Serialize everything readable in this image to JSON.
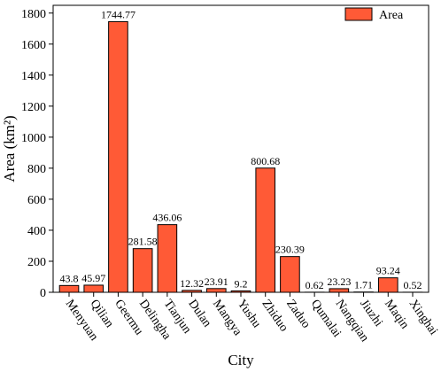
{
  "chart_data": {
    "type": "bar",
    "xlabel": "City",
    "ylabel": "Area (km²)",
    "legend": {
      "label": "Area",
      "placement": "top-right"
    },
    "ylim": [
      0,
      1850
    ],
    "yticks": [
      0,
      200,
      400,
      600,
      800,
      1000,
      1200,
      1400,
      1600,
      1800
    ],
    "categories": [
      "Menyuan",
      "Qilian",
      "Geermu",
      "Delingha",
      "Tianjun",
      "Dulan",
      "Mangya",
      "Yushu",
      "Zhiduo",
      "Zaduo",
      "Qumalai",
      "Nangqian",
      "Jiuzhi",
      "Maqin",
      "Xinghai"
    ],
    "series": [
      {
        "name": "Area",
        "color": "#ff5a36",
        "values": [
          43.8,
          45.97,
          1744.77,
          281.58,
          436.06,
          12.32,
          23.91,
          9.2,
          800.68,
          230.39,
          0.62,
          23.23,
          1.71,
          93.24,
          0.52
        ],
        "value_labels": [
          "43.8",
          "45.97",
          "1744.77",
          "281.58",
          "436.06",
          "12.32",
          "23.91",
          "9.2",
          "800.68",
          "230.39",
          "0.62",
          "23.23",
          "1.71",
          "93.24",
          "0.52"
        ]
      }
    ]
  }
}
